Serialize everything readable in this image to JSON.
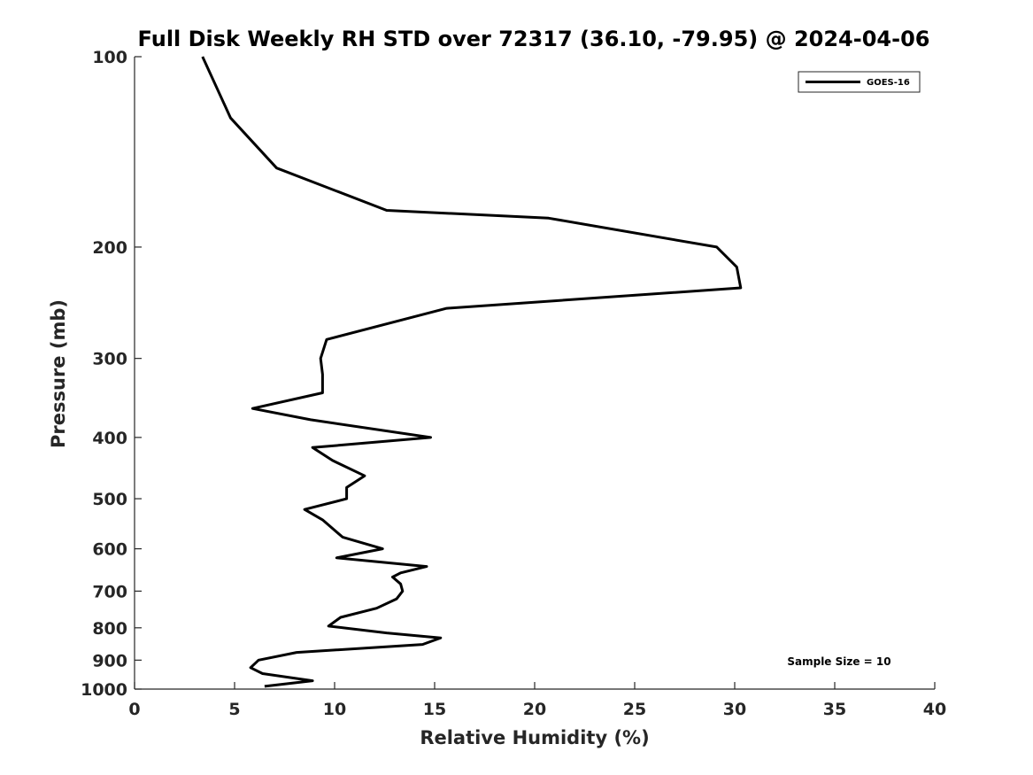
{
  "chart_data": {
    "type": "line",
    "title": "Full Disk Weekly RH STD over 72317 (36.10, -79.95) @ 2024-04-06",
    "xlabel": "Relative Humidity (%)",
    "ylabel": "Pressure (mb)",
    "xlim": [
      0,
      40
    ],
    "ylim": [
      1000,
      100
    ],
    "y_scale": "log",
    "y_inverted": true,
    "x_ticks": [
      "0",
      "5",
      "10",
      "15",
      "20",
      "25",
      "30",
      "35",
      "40"
    ],
    "y_ticks": [
      "100",
      "200",
      "300",
      "400",
      "500",
      "600",
      "700",
      "800",
      "900",
      "1000"
    ],
    "grid": false,
    "legend_position": "top-right",
    "series": [
      {
        "name": "GOES-16",
        "color": "#000000",
        "points": [
          [
            3.4,
            100
          ],
          [
            4.8,
            125
          ],
          [
            7.1,
            150
          ],
          [
            12.6,
            175
          ],
          [
            20.7,
            180
          ],
          [
            29.1,
            200
          ],
          [
            30.1,
            215
          ],
          [
            30.3,
            232
          ],
          [
            15.6,
            250
          ],
          [
            9.6,
            280
          ],
          [
            9.3,
            300
          ],
          [
            9.4,
            318
          ],
          [
            9.4,
            340
          ],
          [
            5.9,
            360
          ],
          [
            8.8,
            375
          ],
          [
            14.8,
            400
          ],
          [
            8.9,
            415
          ],
          [
            9.9,
            435
          ],
          [
            11.5,
            460
          ],
          [
            10.6,
            480
          ],
          [
            10.6,
            500
          ],
          [
            8.5,
            520
          ],
          [
            9.4,
            540
          ],
          [
            10.4,
            575
          ],
          [
            12.4,
            600
          ],
          [
            10.1,
            620
          ],
          [
            14.6,
            640
          ],
          [
            13.3,
            655
          ],
          [
            12.9,
            665
          ],
          [
            13.3,
            682
          ],
          [
            13.4,
            700
          ],
          [
            13.1,
            720
          ],
          [
            12.1,
            745
          ],
          [
            10.3,
            770
          ],
          [
            9.7,
            795
          ],
          [
            12.6,
            815
          ],
          [
            15.3,
            830
          ],
          [
            14.4,
            850
          ],
          [
            8.1,
            875
          ],
          [
            6.2,
            900
          ],
          [
            5.8,
            925
          ],
          [
            6.4,
            945
          ],
          [
            8.9,
            970
          ],
          [
            6.5,
            990
          ]
        ]
      }
    ],
    "annotations": [
      "Sample Size = 10"
    ]
  }
}
